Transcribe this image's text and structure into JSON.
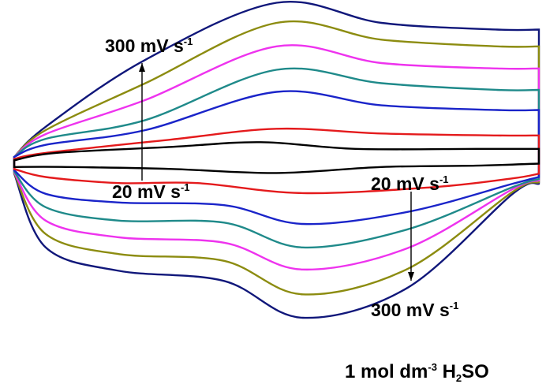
{
  "chart_data": {
    "type": "line",
    "title": "",
    "xlabel": "",
    "ylabel": "",
    "grid": false,
    "legend": "none",
    "series": [
      {
        "color": "#000000",
        "top": [
          [
            0,
            0.55
          ],
          [
            0.08,
            0.66
          ],
          [
            0.3,
            0.75
          ],
          [
            0.47,
            0.82
          ],
          [
            0.65,
            0.72
          ],
          [
            0.88,
            0.72
          ],
          [
            1,
            0.72
          ]
        ],
        "bottom": [
          [
            0,
            0.45
          ],
          [
            0.1,
            0.45
          ],
          [
            0.3,
            0.42
          ],
          [
            0.5,
            0.36
          ],
          [
            0.7,
            0.45
          ],
          [
            0.88,
            0.47
          ],
          [
            1,
            0.5
          ]
        ]
      },
      {
        "color": "#e41a1c",
        "top": [
          [
            0,
            0.57
          ],
          [
            0.06,
            0.66
          ],
          [
            0.3,
            0.86
          ],
          [
            0.5,
            1.02
          ],
          [
            0.7,
            0.95
          ],
          [
            0.92,
            0.92
          ],
          [
            1,
            0.92
          ]
        ],
        "bottom": [
          [
            0,
            0.42
          ],
          [
            0.06,
            0.3
          ],
          [
            0.2,
            0.21
          ],
          [
            0.35,
            0.21
          ],
          [
            0.55,
            0.06
          ],
          [
            0.8,
            0.15
          ],
          [
            0.95,
            0.28
          ],
          [
            1,
            0.35
          ]
        ]
      },
      {
        "color": "#1a24c9",
        "top": [
          [
            0,
            0.6
          ],
          [
            0.06,
            0.78
          ],
          [
            0.25,
            1.0
          ],
          [
            0.5,
            1.57
          ],
          [
            0.7,
            1.37
          ],
          [
            0.92,
            1.3
          ],
          [
            1,
            1.3
          ]
        ],
        "bottom": [
          [
            0,
            0.4
          ],
          [
            0.06,
            0.05
          ],
          [
            0.2,
            -0.08
          ],
          [
            0.4,
            -0.12
          ],
          [
            0.55,
            -0.4
          ],
          [
            0.75,
            -0.22
          ],
          [
            0.95,
            0.2
          ],
          [
            1,
            0.3
          ]
        ]
      },
      {
        "color": "#1f8a8a",
        "top": [
          [
            0,
            0.6
          ],
          [
            0.06,
            0.87
          ],
          [
            0.25,
            1.15
          ],
          [
            0.5,
            1.9
          ],
          [
            0.7,
            1.7
          ],
          [
            0.92,
            1.6
          ],
          [
            1,
            1.6
          ]
        ],
        "bottom": [
          [
            0,
            0.38
          ],
          [
            0.06,
            -0.15
          ],
          [
            0.2,
            -0.35
          ],
          [
            0.4,
            -0.38
          ],
          [
            0.55,
            -0.75
          ],
          [
            0.75,
            -0.48
          ],
          [
            0.95,
            0.15
          ],
          [
            1,
            0.27
          ]
        ]
      },
      {
        "color": "#ee33ee",
        "top": [
          [
            0,
            0.6
          ],
          [
            0.06,
            0.94
          ],
          [
            0.25,
            1.45
          ],
          [
            0.5,
            2.25
          ],
          [
            0.7,
            2.0
          ],
          [
            0.92,
            1.92
          ],
          [
            1,
            1.92
          ]
        ],
        "bottom": [
          [
            0,
            0.37
          ],
          [
            0.06,
            -0.35
          ],
          [
            0.2,
            -0.6
          ],
          [
            0.4,
            -0.68
          ],
          [
            0.55,
            -1.08
          ],
          [
            0.75,
            -0.76
          ],
          [
            0.95,
            0.12
          ],
          [
            1,
            0.25
          ]
        ]
      },
      {
        "color": "#8c8c10",
        "top": [
          [
            0,
            0.6
          ],
          [
            0.06,
            1.0
          ],
          [
            0.25,
            1.7
          ],
          [
            0.5,
            2.6
          ],
          [
            0.7,
            2.35
          ],
          [
            0.92,
            2.25
          ],
          [
            1,
            2.25
          ]
        ],
        "bottom": [
          [
            0,
            0.36
          ],
          [
            0.06,
            -0.55
          ],
          [
            0.2,
            -0.85
          ],
          [
            0.4,
            -0.95
          ],
          [
            0.55,
            -1.45
          ],
          [
            0.75,
            -1.07
          ],
          [
            0.95,
            0.08
          ],
          [
            1,
            0.22
          ]
        ]
      },
      {
        "color": "#10177a",
        "top": [
          [
            0,
            0.6
          ],
          [
            0.06,
            1.05
          ],
          [
            0.25,
            2.05
          ],
          [
            0.5,
            2.9
          ],
          [
            0.7,
            2.6
          ],
          [
            0.92,
            2.5
          ],
          [
            1,
            2.5
          ]
        ],
        "bottom": [
          [
            0,
            0.35
          ],
          [
            0.06,
            -0.75
          ],
          [
            0.2,
            -1.1
          ],
          [
            0.4,
            -1.25
          ],
          [
            0.55,
            -1.8
          ],
          [
            0.75,
            -1.35
          ],
          [
            0.95,
            0.05
          ],
          [
            1,
            0.2
          ]
        ]
      }
    ],
    "annotations": [
      {
        "id": "up_end",
        "text": "300 mV s",
        "sup": "-1"
      },
      {
        "id": "up_start",
        "text": "20 mV s",
        "sup": "-1"
      },
      {
        "id": "down_start",
        "text": "20 mV s",
        "sup": "-1"
      },
      {
        "id": "down_end",
        "text": "300 mV s",
        "sup": "-1"
      },
      {
        "id": "electrolyte",
        "text": "1 mol dm",
        "sup": "-3",
        "tail": " H",
        "sub": "2",
        "tail2": "SO"
      }
    ]
  }
}
